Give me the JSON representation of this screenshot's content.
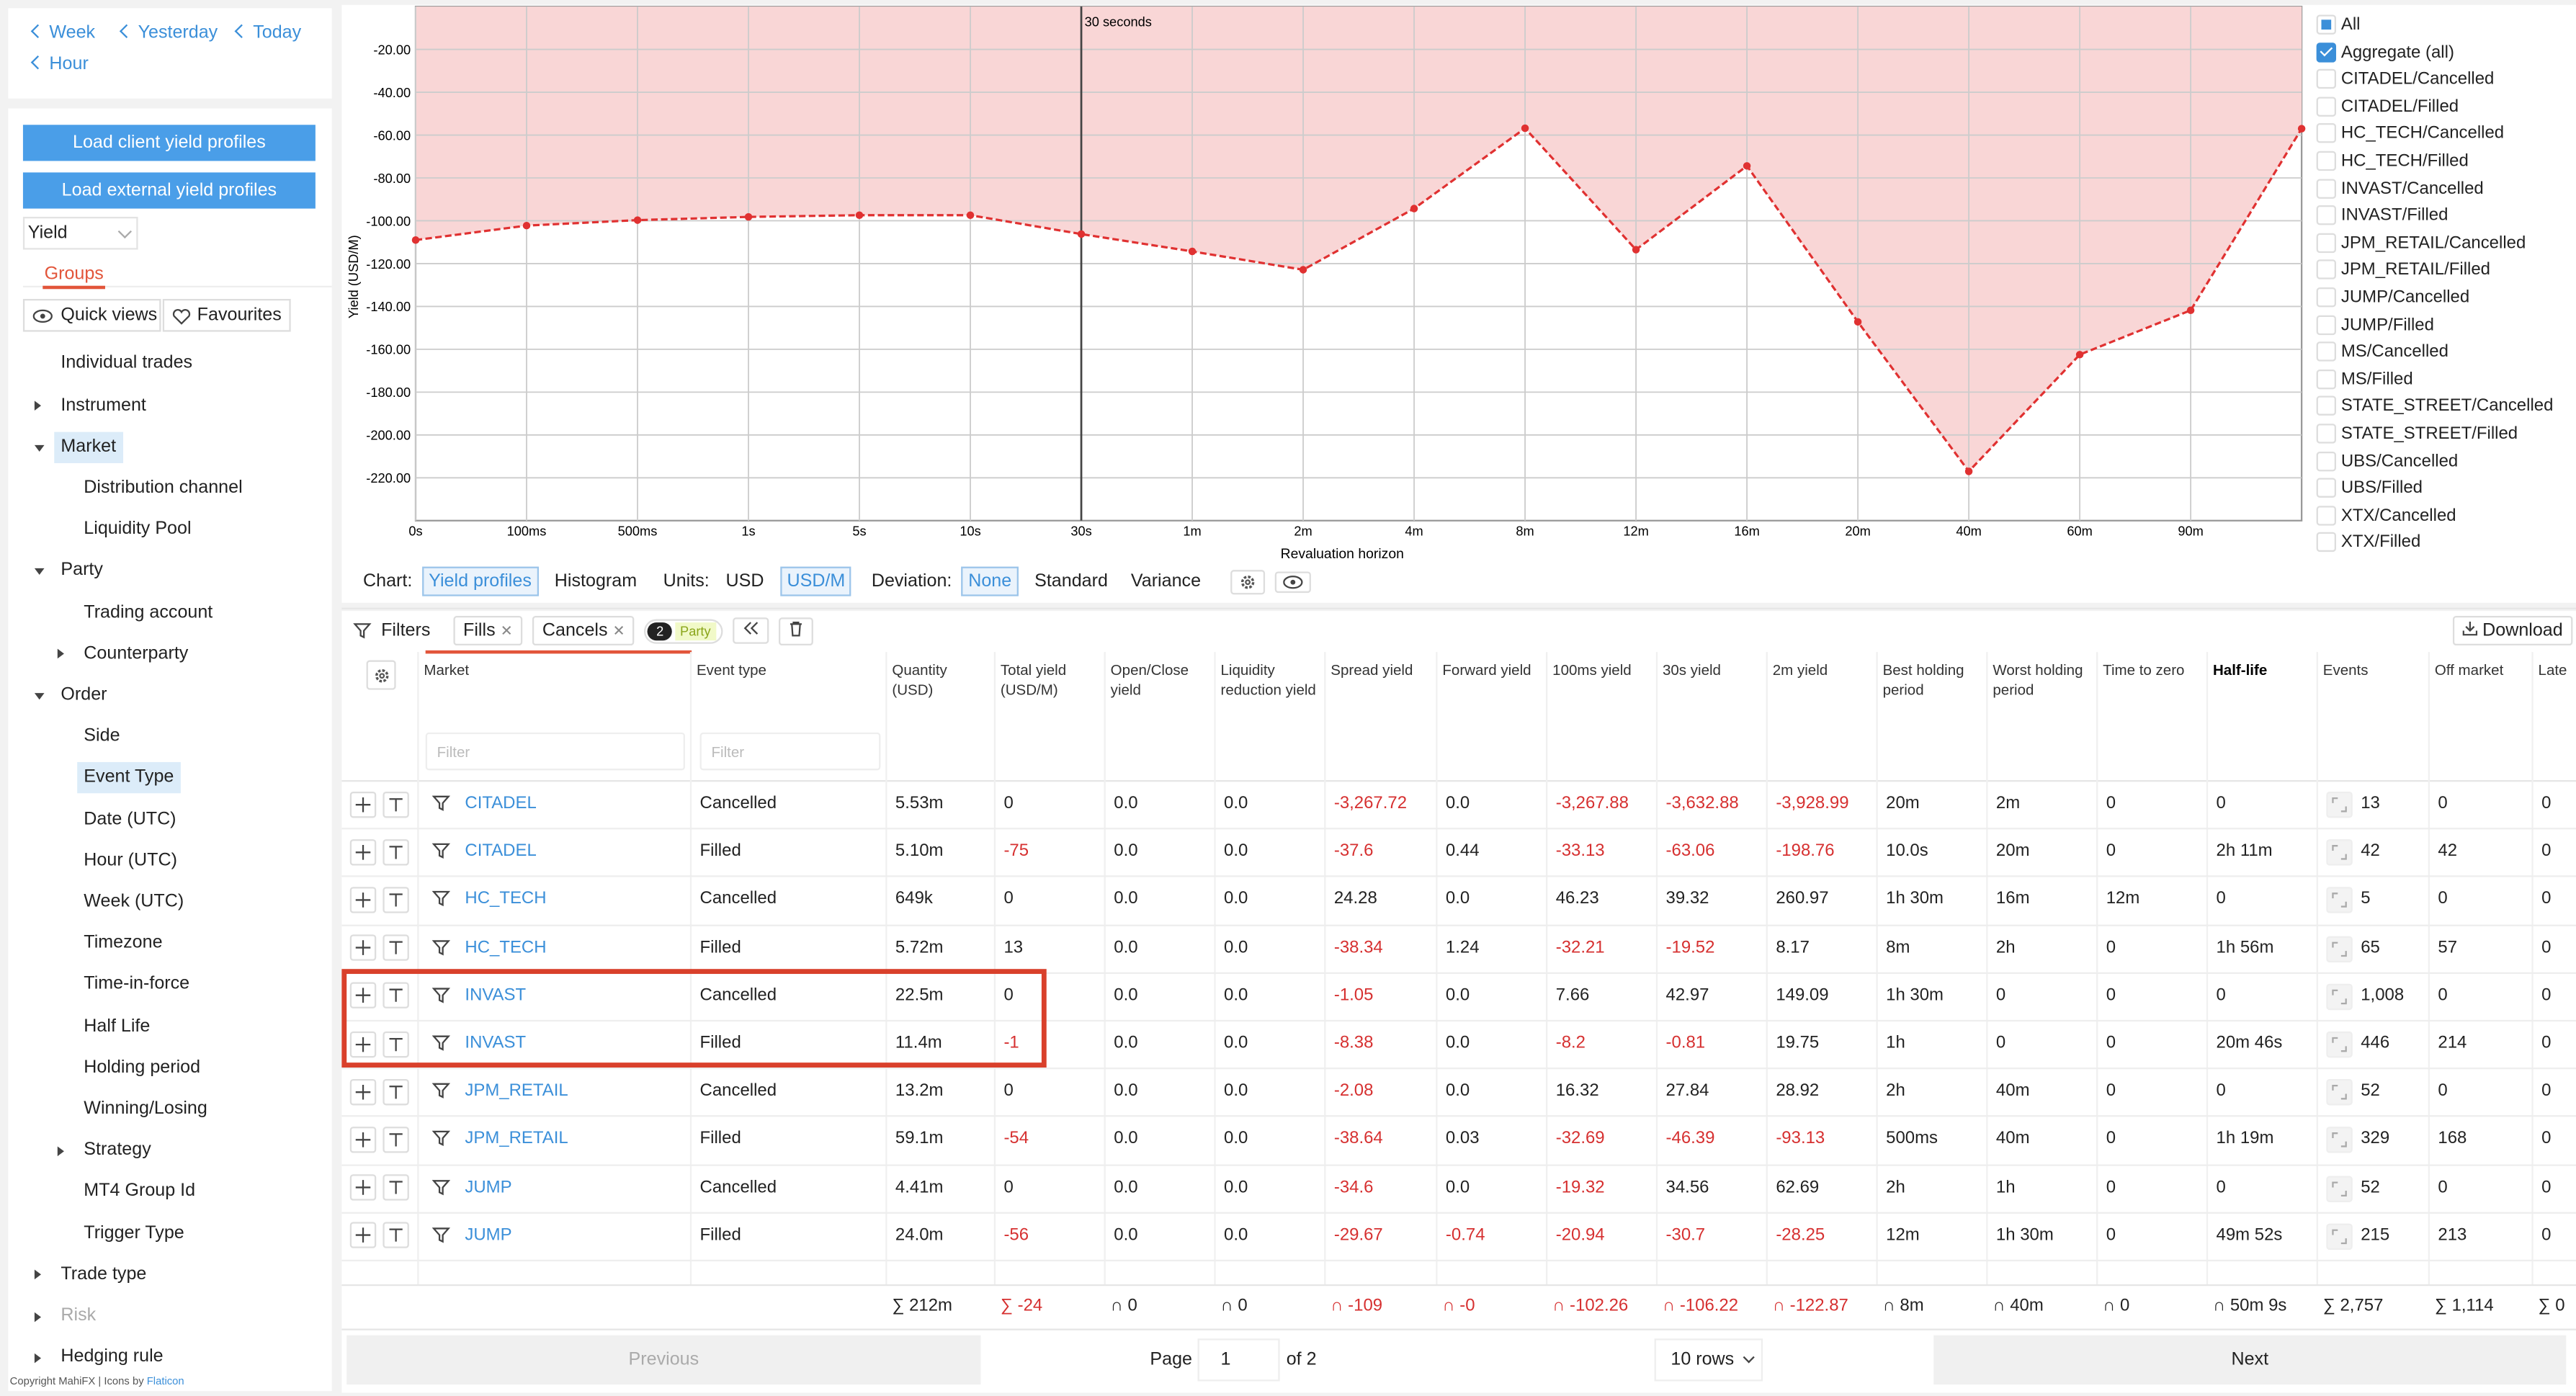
{
  "nav": {
    "links": [
      "Week",
      "Yesterday",
      "Today",
      "Hour"
    ]
  },
  "sidebar": {
    "buttons": [
      "Load client yield profiles",
      "Load external yield profiles"
    ],
    "measure": "Yield",
    "tab": "Groups",
    "views": [
      "Quick views",
      "Favourites"
    ],
    "tree": [
      {
        "label": "Individual trades"
      },
      {
        "label": "Instrument",
        "collapsed": true
      },
      {
        "label": "Market",
        "selected": true,
        "children": [
          {
            "label": "Distribution channel"
          },
          {
            "label": "Liquidity Pool"
          }
        ]
      },
      {
        "label": "Party",
        "children": [
          {
            "label": "Trading account"
          },
          {
            "label": "Counterparty",
            "collapsed": true
          }
        ]
      },
      {
        "label": "Order",
        "children": [
          {
            "label": "Side"
          },
          {
            "label": "Event Type",
            "selected": true
          },
          {
            "label": "Date (UTC)"
          },
          {
            "label": "Hour (UTC)"
          },
          {
            "label": "Week (UTC)"
          },
          {
            "label": "Timezone"
          },
          {
            "label": "Time-in-force"
          },
          {
            "label": "Half Life"
          },
          {
            "label": "Holding period"
          },
          {
            "label": "Winning/Losing"
          },
          {
            "label": "Strategy",
            "collapsed": true
          },
          {
            "label": "MT4 Group Id"
          },
          {
            "label": "Trigger Type"
          }
        ]
      },
      {
        "label": "Trade type",
        "collapsed": true
      },
      {
        "label": "Risk",
        "collapsed": true,
        "disabled": true
      },
      {
        "label": "Hedging rule",
        "collapsed": true
      }
    ],
    "footer": {
      "text": "Copyright MahiFX | Icons by",
      "link": "Flaticon"
    }
  },
  "chart": {
    "type": "line",
    "x_label": "Revaluation horizon",
    "y_label": "Yield (USD/M)",
    "annotation": {
      "text": "30 seconds",
      "x": "30s"
    },
    "categories": [
      "0s",
      "100ms",
      "500ms",
      "1s",
      "5s",
      "10s",
      "30s",
      "1m",
      "2m",
      "4m",
      "8m",
      "12m",
      "16m",
      "20m",
      "40m",
      "60m",
      "90m",
      null
    ],
    "values": [
      -109,
      -102.26,
      -99.7,
      -98.2,
      -97.4,
      -97.4,
      -106.22,
      -114.3,
      -122.87,
      -94.3,
      -56.8,
      -113.5,
      -74.4,
      -147.2,
      -217,
      -162.5,
      -141.8,
      -57
    ],
    "color": "#e03131",
    "fill": "#f9d6d6",
    "ylim": [
      -240,
      0
    ],
    "yticks": [
      {
        "value": -20,
        "label": "-20.00"
      },
      {
        "value": -40,
        "label": "-40.00"
      },
      {
        "value": -60,
        "label": "-60.00"
      },
      {
        "value": -80,
        "label": "-80.00"
      },
      {
        "value": -100,
        "label": "-100.00"
      },
      {
        "value": -120,
        "label": "-120.00"
      },
      {
        "value": -140,
        "label": "-140.00"
      },
      {
        "value": -160,
        "label": "-160.00"
      },
      {
        "value": -180,
        "label": "-180.00"
      },
      {
        "value": -200,
        "label": "-200.00"
      },
      {
        "value": -220,
        "label": "-220.00"
      }
    ],
    "grid": true,
    "legend": [
      {
        "label": "All",
        "state": "partial"
      },
      {
        "label": "Aggregate (all)",
        "state": "checked"
      },
      {
        "label": "CITADEL/Cancelled",
        "state": "unchecked"
      },
      {
        "label": "CITADEL/Filled",
        "state": "unchecked"
      },
      {
        "label": "HC_TECH/Cancelled",
        "state": "unchecked"
      },
      {
        "label": "HC_TECH/Filled",
        "state": "unchecked"
      },
      {
        "label": "INVAST/Cancelled",
        "state": "unchecked"
      },
      {
        "label": "INVAST/Filled",
        "state": "unchecked"
      },
      {
        "label": "JPM_RETAIL/Cancelled",
        "state": "unchecked"
      },
      {
        "label": "JPM_RETAIL/Filled",
        "state": "unchecked"
      },
      {
        "label": "JUMP/Cancelled",
        "state": "unchecked"
      },
      {
        "label": "JUMP/Filled",
        "state": "unchecked"
      },
      {
        "label": "MS/Cancelled",
        "state": "unchecked"
      },
      {
        "label": "MS/Filled",
        "state": "unchecked"
      },
      {
        "label": "STATE_STREET/Cancelled",
        "state": "unchecked"
      },
      {
        "label": "STATE_STREET/Filled",
        "state": "unchecked"
      },
      {
        "label": "UBS/Cancelled",
        "state": "unchecked"
      },
      {
        "label": "UBS/Filled",
        "state": "unchecked"
      },
      {
        "label": "XTX/Cancelled",
        "state": "unchecked"
      },
      {
        "label": "XTX/Filled",
        "state": "unchecked"
      }
    ]
  },
  "chart_controls": [
    {
      "label": "Chart:",
      "options": [
        {
          "label": "Yield profiles",
          "active": true
        },
        {
          "label": "Histogram"
        }
      ]
    },
    {
      "label": "Units:",
      "options": [
        {
          "label": "USD"
        },
        {
          "label": "USD/M",
          "active": true
        }
      ]
    },
    {
      "label": "Deviation:",
      "options": [
        {
          "label": "None",
          "active": true
        },
        {
          "label": "Standard"
        },
        {
          "label": "Variance"
        }
      ]
    }
  ],
  "filters": {
    "label": "Filters",
    "chips": [
      "Fills",
      "Cancels"
    ],
    "badge": "2",
    "party_chip": "Party",
    "download": "Download"
  },
  "table": {
    "columns": [
      "Market",
      "Event type",
      "Quantity (USD)",
      "Total yield (USD/M)",
      "Open/Close yield",
      "Liquidity reduction yield",
      "Spread yield",
      "Forward yield",
      "100ms yield",
      "30s yield",
      "2m yield",
      "Best holding period",
      "Worst holding period",
      "Time to zero",
      "Half-life",
      "Events",
      "Off market",
      "Late"
    ],
    "filter_placeholder": "Filter",
    "rows": [
      {
        "cells": [
          "CITADEL",
          "Cancelled",
          "5.53m",
          "0",
          "0.0",
          "0.0",
          "-3,267.72",
          "0.0",
          "-3,267.88",
          "-3,632.88",
          "-3,928.99",
          "20m",
          "2m",
          "0",
          "0",
          "13",
          "0",
          "0"
        ]
      },
      {
        "cells": [
          "CITADEL",
          "Filled",
          "5.10m",
          "-75",
          "0.0",
          "0.0",
          "-37.6",
          "0.44",
          "-33.13",
          "-63.06",
          "-198.76",
          "10.0s",
          "20m",
          "0",
          "2h 11m",
          "42",
          "42",
          "0"
        ]
      },
      {
        "cells": [
          "HC_TECH",
          "Cancelled",
          "649k",
          "0",
          "0.0",
          "0.0",
          "24.28",
          "0.0",
          "46.23",
          "39.32",
          "260.97",
          "1h 30m",
          "16m",
          "12m",
          "0",
          "5",
          "0",
          "0"
        ]
      },
      {
        "cells": [
          "HC_TECH",
          "Filled",
          "5.72m",
          "13",
          "0.0",
          "0.0",
          "-38.34",
          "1.24",
          "-32.21",
          "-19.52",
          "8.17",
          "8m",
          "2h",
          "0",
          "1h 56m",
          "65",
          "57",
          "0"
        ]
      },
      {
        "cells": [
          "INVAST",
          "Cancelled",
          "22.5m",
          "0",
          "0.0",
          "0.0",
          "-1.05",
          "0.0",
          "7.66",
          "42.97",
          "149.09",
          "1h 30m",
          "0",
          "0",
          "0",
          "1,008",
          "0",
          "0"
        ],
        "highlighted": true
      },
      {
        "cells": [
          "INVAST",
          "Filled",
          "11.4m",
          "-1",
          "0.0",
          "0.0",
          "-8.38",
          "0.0",
          "-8.2",
          "-0.81",
          "19.75",
          "1h",
          "0",
          "0",
          "20m 46s",
          "446",
          "214",
          "0"
        ],
        "highlighted": true
      },
      {
        "cells": [
          "JPM_RETAIL",
          "Cancelled",
          "13.2m",
          "0",
          "0.0",
          "0.0",
          "-2.08",
          "0.0",
          "16.32",
          "27.84",
          "28.92",
          "2h",
          "40m",
          "0",
          "0",
          "52",
          "0",
          "0"
        ]
      },
      {
        "cells": [
          "JPM_RETAIL",
          "Filled",
          "59.1m",
          "-54",
          "0.0",
          "0.0",
          "-38.64",
          "0.03",
          "-32.69",
          "-46.39",
          "-93.13",
          "500ms",
          "40m",
          "0",
          "1h 19m",
          "329",
          "168",
          "0"
        ]
      },
      {
        "cells": [
          "JUMP",
          "Cancelled",
          "4.41m",
          "0",
          "0.0",
          "0.0",
          "-34.6",
          "0.0",
          "-19.32",
          "34.56",
          "62.69",
          "2h",
          "1h",
          "0",
          "0",
          "52",
          "0",
          "0"
        ]
      },
      {
        "cells": [
          "JUMP",
          "Filled",
          "24.0m",
          "-56",
          "0.0",
          "0.0",
          "-29.67",
          "-0.74",
          "-20.94",
          "-30.7",
          "-28.25",
          "12m",
          "1h 30m",
          "0",
          "49m 52s",
          "215",
          "213",
          "0"
        ]
      }
    ],
    "totals": [
      "∑ 212m",
      "∑ -24",
      "∩ 0",
      "∩ 0",
      "∩ -109",
      "∩ -0",
      "∩ -102.26",
      "∩ -106.22",
      "∩ -122.87",
      "∩ 8m",
      "∩ 40m",
      "∩ 0",
      "∩ 50m 9s",
      "∑ 2,757",
      "∑ 1,114",
      "∑ 0"
    ]
  },
  "pagination": {
    "previous": "Previous",
    "page_label": "Page",
    "page": "1",
    "of": "of 2",
    "rows": "10 rows",
    "next": "Next"
  }
}
